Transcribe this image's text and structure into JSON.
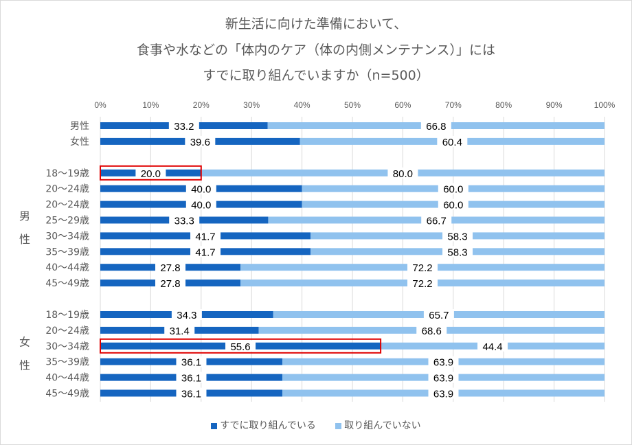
{
  "chart_data": {
    "type": "bar",
    "orientation": "horizontal",
    "stacked": "percent",
    "title_lines": [
      "新生活に向けた準備において、",
      "食事や水などの「体内のケア（体の内側メンテナンス）」には",
      "すでに取り組んでいますか（n=500）"
    ],
    "xlim": [
      0,
      100
    ],
    "x_ticks": [
      "0%",
      "10%",
      "20%",
      "30%",
      "40%",
      "50%",
      "60%",
      "70%",
      "80%",
      "90%",
      "100%"
    ],
    "grid": true,
    "legend_position": "bottom",
    "series": [
      {
        "name": "すでに取り組んでいる",
        "color": "#1565c0"
      },
      {
        "name": "取り組んでいない",
        "color": "#90c2ee"
      }
    ],
    "groups": [
      {
        "label": "",
        "rows": [
          {
            "category": "男性",
            "values": [
              33.2,
              66.8
            ]
          },
          {
            "category": "女性",
            "values": [
              39.6,
              60.4
            ]
          }
        ]
      },
      {
        "label": "男性",
        "rows": [
          {
            "category": "18〜19歳",
            "values": [
              20.0,
              80.0
            ],
            "highlight": true
          },
          {
            "category": "20〜24歳",
            "values": [
              40.0,
              60.0
            ]
          },
          {
            "category": "20〜24歳",
            "values": [
              40.0,
              60.0
            ]
          },
          {
            "category": "25〜29歳",
            "values": [
              33.3,
              66.7
            ]
          },
          {
            "category": "30〜34歳",
            "values": [
              41.7,
              58.3
            ]
          },
          {
            "category": "35〜39歳",
            "values": [
              41.7,
              58.3
            ]
          },
          {
            "category": "40〜44歳",
            "values": [
              27.8,
              72.2
            ]
          },
          {
            "category": "45〜49歳",
            "values": [
              27.8,
              72.2
            ]
          }
        ]
      },
      {
        "label": "女性",
        "rows": [
          {
            "category": "18〜19歳",
            "values": [
              34.3,
              65.7
            ]
          },
          {
            "category": "20〜24歳",
            "values": [
              31.4,
              68.6
            ]
          },
          {
            "category": "30〜34歳",
            "values": [
              55.6,
              44.4
            ],
            "highlight": true
          },
          {
            "category": "35〜39歳",
            "values": [
              36.1,
              63.9
            ]
          },
          {
            "category": "40〜44歳",
            "values": [
              36.1,
              63.9
            ]
          },
          {
            "category": "45〜49歳",
            "values": [
              36.1,
              63.9
            ]
          }
        ]
      }
    ],
    "highlight_color": "#e00000"
  }
}
